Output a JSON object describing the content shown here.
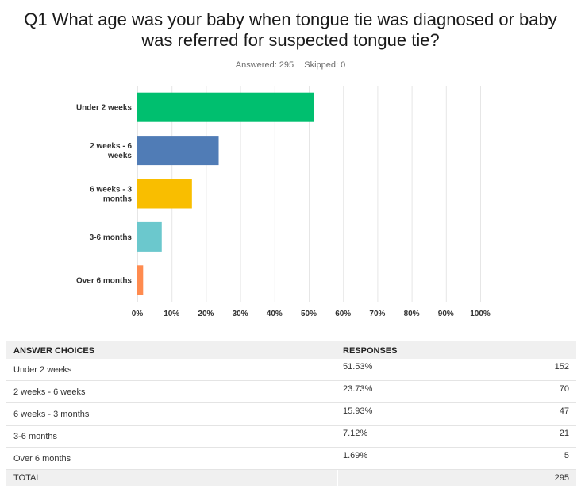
{
  "question": {
    "line1": "Q1 What age was your baby when tongue tie was diagnosed or baby",
    "line2": "was referred for suspected tongue tie?"
  },
  "stats": {
    "answered": "Answered: 295",
    "skipped": "Skipped: 0"
  },
  "chart_data": {
    "type": "bar",
    "orientation": "horizontal",
    "categories": [
      "Under 2 weeks",
      "2 weeks - 6 weeks",
      "6 weeks - 3 months",
      "3-6 months",
      "Over 6 months"
    ],
    "values": [
      51.53,
      23.73,
      15.93,
      7.12,
      1.69
    ],
    "colors": [
      "#00bf6f",
      "#507cb6",
      "#f9be00",
      "#6bc8cd",
      "#ff8b4f"
    ],
    "xlim": [
      0,
      100
    ],
    "ticks": [
      "0%",
      "10%",
      "20%",
      "30%",
      "40%",
      "50%",
      "60%",
      "70%",
      "80%",
      "90%",
      "100%"
    ],
    "grid": true
  },
  "table": {
    "headers": {
      "choice": "ANSWER CHOICES",
      "responses": "RESPONSES"
    },
    "rows": [
      {
        "choice": "Under 2 weeks",
        "percent": "51.53%",
        "count": "152"
      },
      {
        "choice": "2 weeks - 6 weeks",
        "percent": "23.73%",
        "count": "70"
      },
      {
        "choice": "6 weeks - 3 months",
        "percent": "15.93%",
        "count": "47"
      },
      {
        "choice": "3-6 months",
        "percent": "7.12%",
        "count": "21"
      },
      {
        "choice": "Over 6 months",
        "percent": "1.69%",
        "count": "5"
      }
    ],
    "total": {
      "label": "TOTAL",
      "count": "295"
    }
  }
}
